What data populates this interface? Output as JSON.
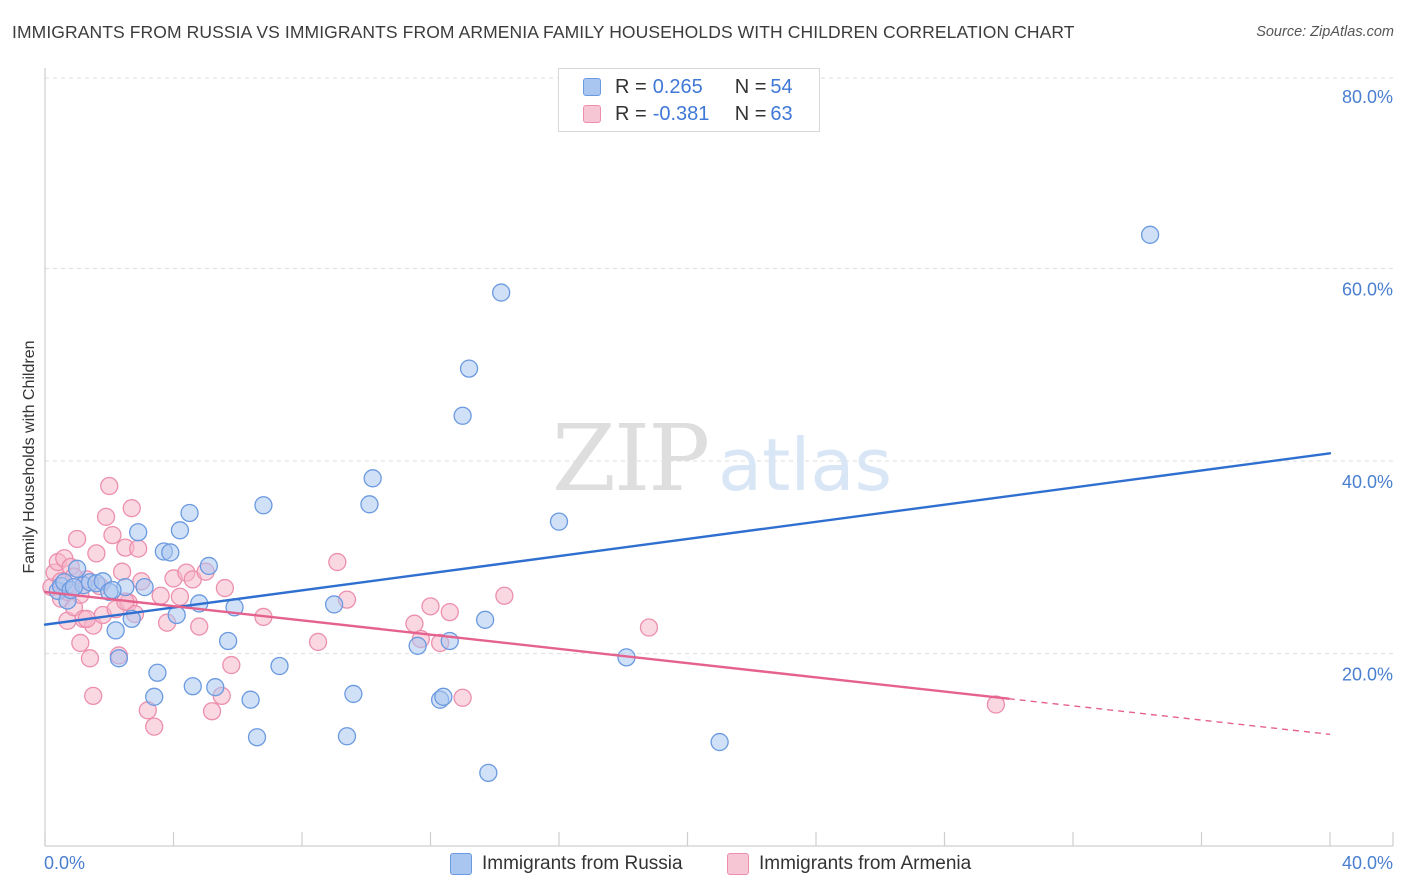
{
  "header": {
    "title": "IMMIGRANTS FROM RUSSIA VS IMMIGRANTS FROM ARMENIA FAMILY HOUSEHOLDS WITH CHILDREN CORRELATION CHART",
    "source": "Source: ZipAtlas.com"
  },
  "watermark": {
    "zip": "ZIP",
    "atlas": "atlas"
  },
  "legend_top": {
    "russia": {
      "r_label": "R = ",
      "r_value": "0.265",
      "n_label": "N = ",
      "n_value": "54"
    },
    "armenia": {
      "r_label": "R = ",
      "r_value": "-0.381",
      "n_label": "N = ",
      "n_value": "63"
    }
  },
  "legend_bottom": {
    "russia": "Immigrants from Russia",
    "armenia": "Immigrants from Armenia"
  },
  "colors": {
    "russia_fill": "#a9c6f0",
    "russia_stroke": "#6b9ae0",
    "russia_line": "#2f6fd0",
    "armenia_fill": "#f6b8cb",
    "armenia_stroke": "#ec8fae",
    "armenia_line": "#e5628f",
    "tick_text": "#4a7fd0",
    "grid": "#e3e3e3"
  },
  "chart_data": {
    "type": "scatter",
    "title": "IMMIGRANTS FROM RUSSIA VS IMMIGRANTS FROM ARMENIA FAMILY HOUSEHOLDS WITH CHILDREN CORRELATION CHART",
    "xlabel": "",
    "ylabel": "Family Households with Children",
    "xlim": [
      0,
      40
    ],
    "ylim": [
      0,
      80
    ],
    "x_tick_labels": [
      {
        "value": 0,
        "label": "0.0%"
      },
      {
        "value": 40,
        "label": "40.0%"
      }
    ],
    "y_tick_labels": [
      {
        "value": 20,
        "label": "20.0%"
      },
      {
        "value": 40,
        "label": "40.0%"
      },
      {
        "value": 60,
        "label": "60.0%"
      },
      {
        "value": 80,
        "label": "80.0%"
      }
    ],
    "y_gridlines": [
      20,
      40,
      60,
      80
    ],
    "x_minor_ticks": [
      0,
      4,
      8,
      12,
      16,
      20,
      24,
      28,
      32,
      36,
      40
    ],
    "series": [
      {
        "name": "Immigrants from Russia",
        "key": "russia",
        "r": 0.265,
        "n": 54,
        "trend": {
          "x_start": 0,
          "y_start": 23.0,
          "x_end": 40,
          "y_end": 40.8,
          "dashed_from": null
        },
        "points": [
          [
            0.4,
            26.5
          ],
          [
            0.5,
            27.0
          ],
          [
            0.6,
            27.4
          ],
          [
            0.7,
            25.5
          ],
          [
            0.8,
            26.6
          ],
          [
            1.0,
            28.8
          ],
          [
            1.2,
            27.1
          ],
          [
            1.4,
            27.4
          ],
          [
            1.6,
            27.3
          ],
          [
            1.8,
            27.5
          ],
          [
            2.0,
            26.4
          ],
          [
            2.2,
            22.4
          ],
          [
            2.3,
            19.5
          ],
          [
            2.5,
            26.9
          ],
          [
            2.7,
            23.6
          ],
          [
            2.9,
            32.6
          ],
          [
            3.1,
            26.9
          ],
          [
            3.5,
            18.0
          ],
          [
            3.4,
            15.5
          ],
          [
            3.7,
            30.6
          ],
          [
            3.9,
            30.5
          ],
          [
            4.1,
            24.0
          ],
          [
            4.2,
            32.8
          ],
          [
            4.5,
            34.6
          ],
          [
            4.6,
            16.6
          ],
          [
            4.8,
            25.2
          ],
          [
            5.1,
            29.1
          ],
          [
            5.3,
            16.5
          ],
          [
            5.7,
            21.3
          ],
          [
            5.9,
            24.8
          ],
          [
            6.4,
            15.2
          ],
          [
            6.6,
            11.3
          ],
          [
            6.8,
            35.4
          ],
          [
            7.3,
            18.7
          ],
          [
            9.0,
            25.1
          ],
          [
            9.4,
            11.4
          ],
          [
            9.6,
            15.8
          ],
          [
            10.1,
            35.5
          ],
          [
            10.2,
            38.2
          ],
          [
            11.6,
            20.8
          ],
          [
            12.3,
            15.2
          ],
          [
            12.4,
            15.5
          ],
          [
            12.6,
            21.3
          ],
          [
            13.2,
            49.6
          ],
          [
            13.0,
            44.7
          ],
          [
            13.7,
            23.5
          ],
          [
            13.8,
            7.6
          ],
          [
            14.2,
            57.5
          ],
          [
            16.0,
            33.7
          ],
          [
            18.1,
            19.6
          ],
          [
            21.0,
            10.8
          ],
          [
            34.4,
            63.5
          ],
          [
            0.9,
            26.9
          ],
          [
            2.1,
            26.6
          ]
        ]
      },
      {
        "name": "Immigrants from Armenia",
        "key": "armenia",
        "r": -0.381,
        "n": 63,
        "trend": {
          "x_start": 0,
          "y_start": 26.4,
          "x_end": 40,
          "y_end": 11.6,
          "dashed_from": 30.0
        },
        "points": [
          [
            0.2,
            26.9
          ],
          [
            0.3,
            28.4
          ],
          [
            0.4,
            29.5
          ],
          [
            0.5,
            27.5
          ],
          [
            0.6,
            29.9
          ],
          [
            0.5,
            25.7
          ],
          [
            0.7,
            26.4
          ],
          [
            0.8,
            29.0
          ],
          [
            0.7,
            23.4
          ],
          [
            0.9,
            24.8
          ],
          [
            1.0,
            31.9
          ],
          [
            1.1,
            21.1
          ],
          [
            1.1,
            26.1
          ],
          [
            1.2,
            23.6
          ],
          [
            1.3,
            27.7
          ],
          [
            1.4,
            19.5
          ],
          [
            1.5,
            22.9
          ],
          [
            1.6,
            30.4
          ],
          [
            1.7,
            27.0
          ],
          [
            1.8,
            24.0
          ],
          [
            1.9,
            34.2
          ],
          [
            2.0,
            37.4
          ],
          [
            2.1,
            32.3
          ],
          [
            2.2,
            24.6
          ],
          [
            2.3,
            19.8
          ],
          [
            2.4,
            28.5
          ],
          [
            2.5,
            31.0
          ],
          [
            2.6,
            25.3
          ],
          [
            2.7,
            35.1
          ],
          [
            2.8,
            24.1
          ],
          [
            2.9,
            30.9
          ],
          [
            3.0,
            27.5
          ],
          [
            3.2,
            14.1
          ],
          [
            3.4,
            12.4
          ],
          [
            3.6,
            26.0
          ],
          [
            3.8,
            23.2
          ],
          [
            4.0,
            27.8
          ],
          [
            4.2,
            25.9
          ],
          [
            4.4,
            28.4
          ],
          [
            4.6,
            27.7
          ],
          [
            4.8,
            22.8
          ],
          [
            5.0,
            28.5
          ],
          [
            5.2,
            14.0
          ],
          [
            5.5,
            15.6
          ],
          [
            5.6,
            26.8
          ],
          [
            5.8,
            18.8
          ],
          [
            6.8,
            23.8
          ],
          [
            8.5,
            21.2
          ],
          [
            9.1,
            29.5
          ],
          [
            9.4,
            25.6
          ],
          [
            11.5,
            23.1
          ],
          [
            11.7,
            21.5
          ],
          [
            12.0,
            24.9
          ],
          [
            12.3,
            21.1
          ],
          [
            12.6,
            24.3
          ],
          [
            13.0,
            15.4
          ],
          [
            14.3,
            26.0
          ],
          [
            18.8,
            22.7
          ],
          [
            29.6,
            14.7
          ],
          [
            1.5,
            15.6
          ],
          [
            0.9,
            28.0
          ],
          [
            1.3,
            23.6
          ],
          [
            2.5,
            25.4
          ]
        ]
      }
    ]
  }
}
